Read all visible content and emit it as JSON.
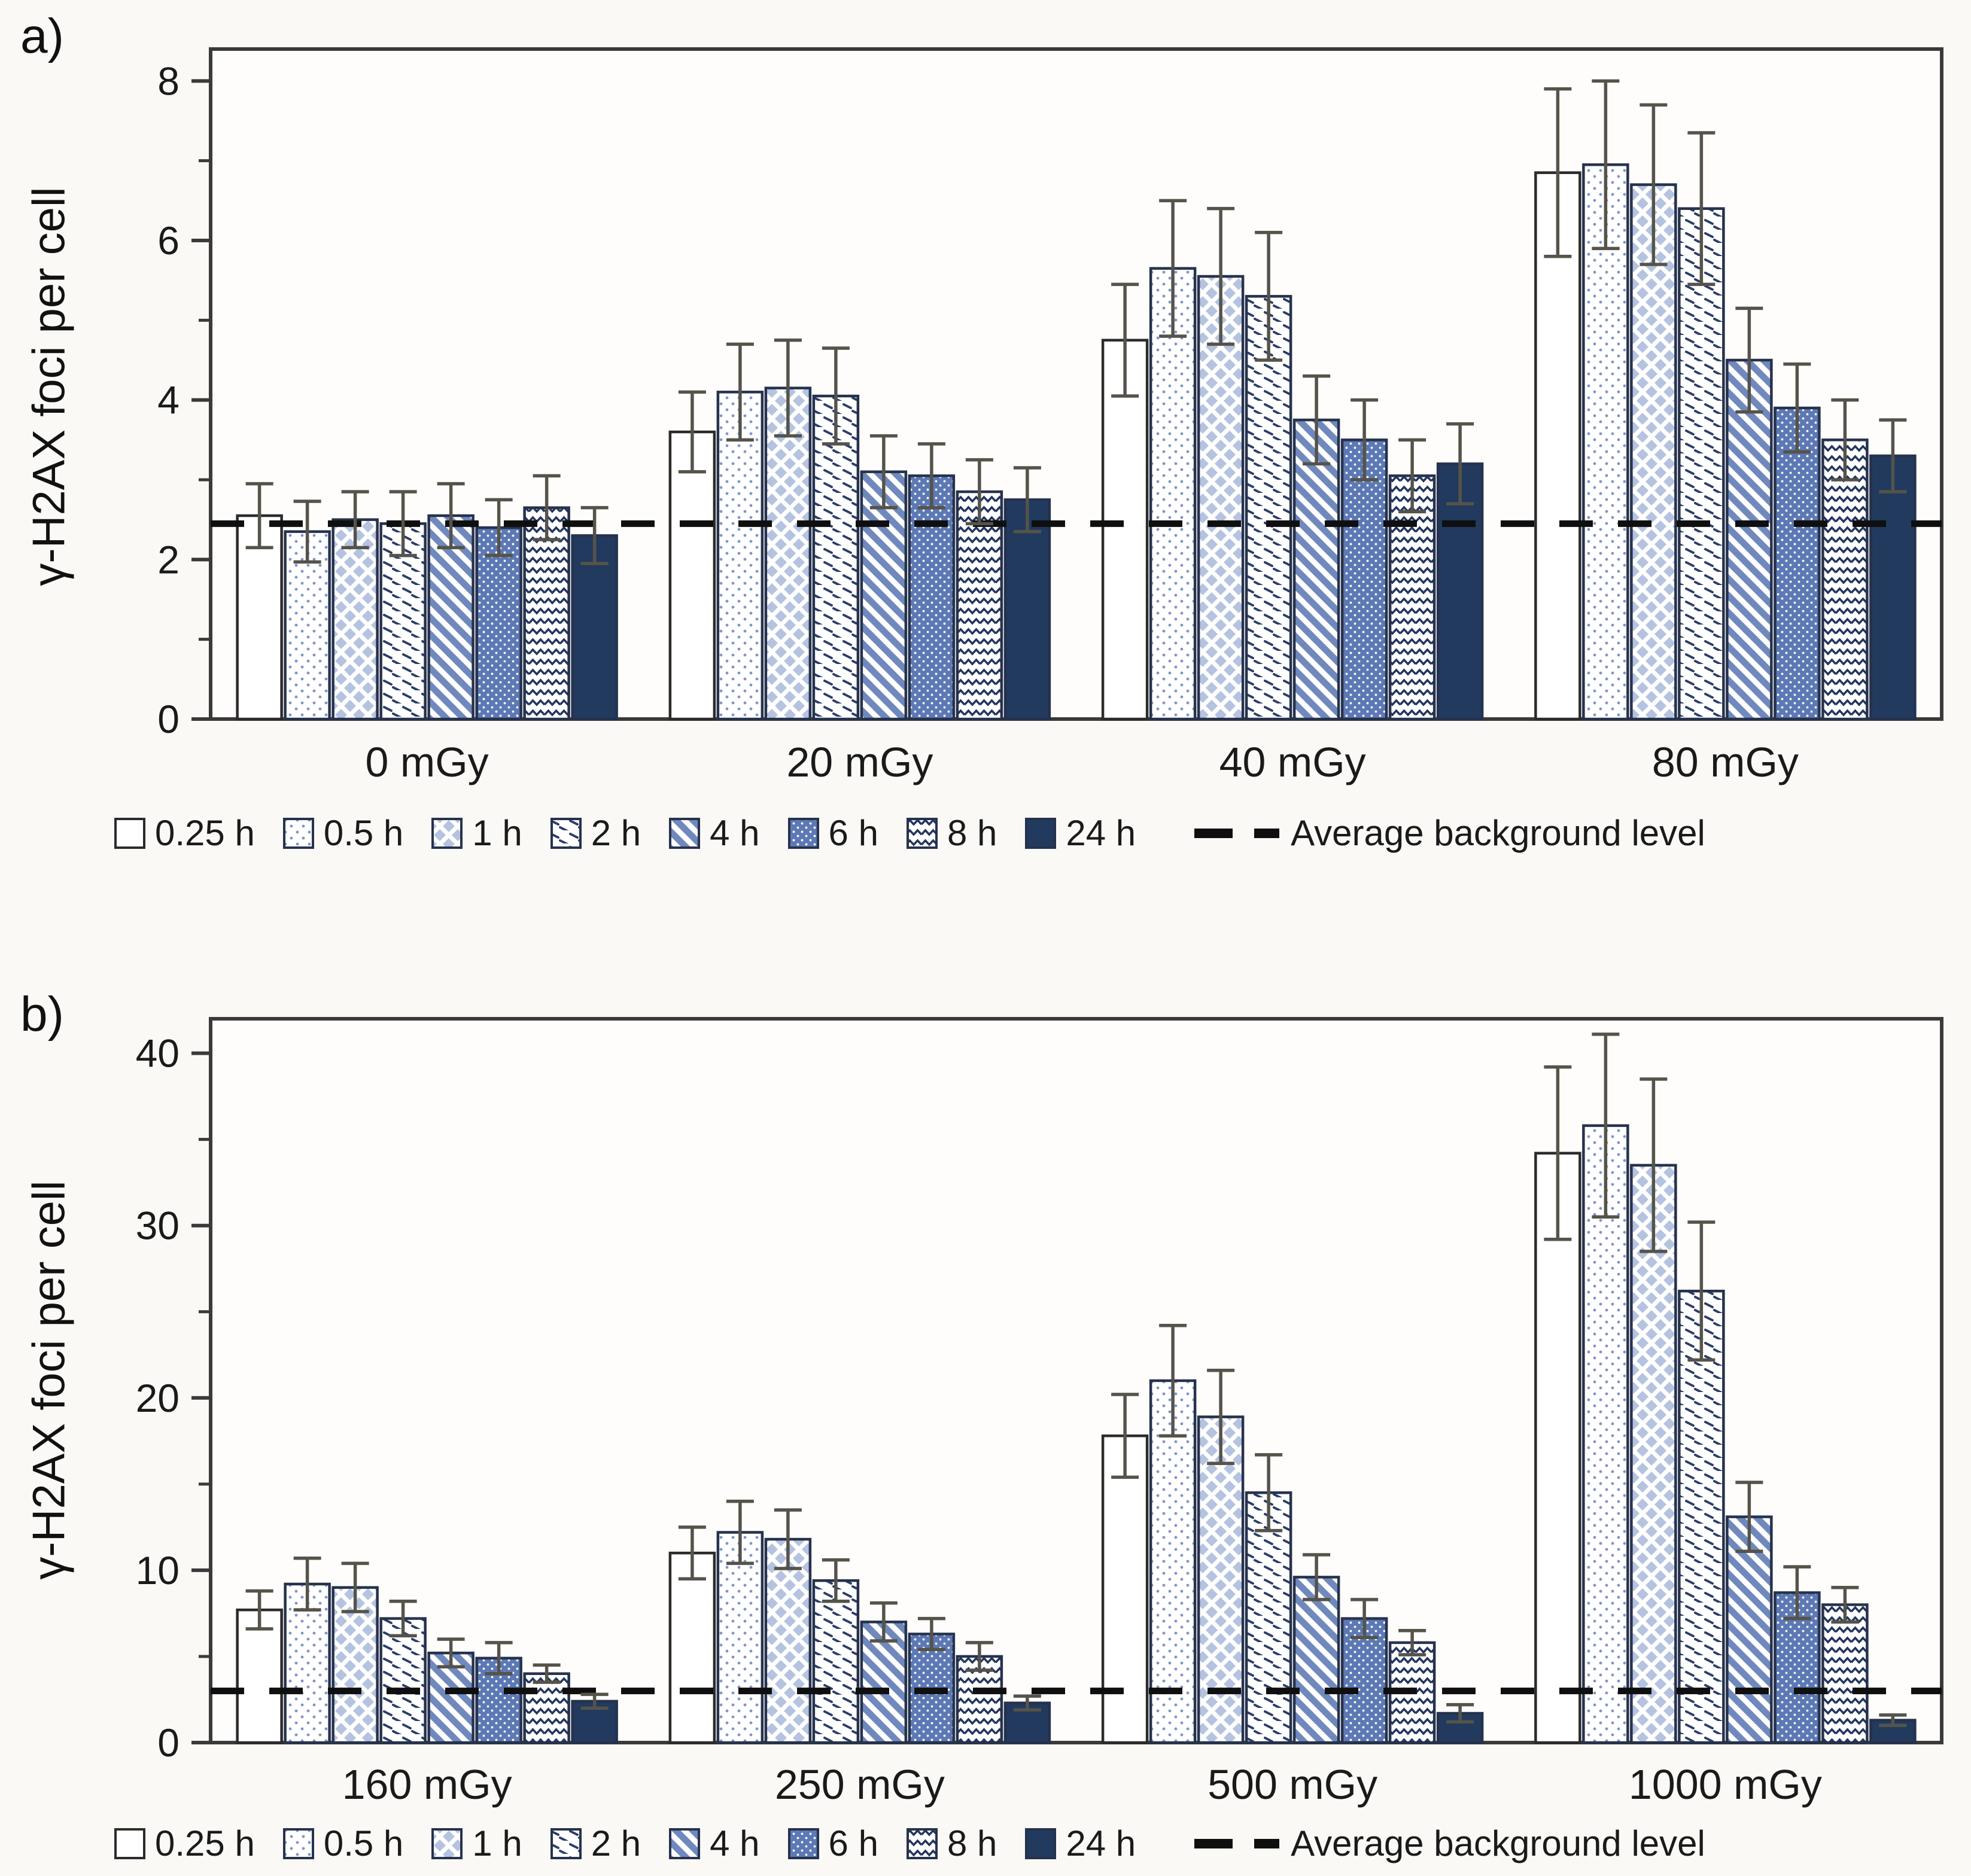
{
  "figure_title": "gamma-H2AX foci time course bar charts",
  "style": {
    "colors": {
      "background": "#faf9f6",
      "plot_fill": "#fefdfb",
      "axis": "#3a3a3a",
      "text": "#1a1a1a",
      "bar_outline": "#26324d",
      "white_bar_outline": "#2b2b2b",
      "light_blue": "#b5c3e1",
      "dot_blue": "#7e95c8",
      "stripe_blue": "#7089bd",
      "mid_blue": "#5d79b5",
      "solid_navy": "#213a5e",
      "pattern_navy": "#2c3e66",
      "error_bar": "#55534a",
      "dashed_line": "#0f0f0f"
    },
    "patterns": {
      "0.25 h": "plain-white",
      "0.5 h": "dotted",
      "1 h": "basket-weave",
      "2 h": "diagonal-dashes",
      "4 h": "diagonal-stripes",
      "6 h": "dotted-dark-blue",
      "8 h": "zigzag",
      "24 h": "solid-navy"
    }
  },
  "legend": {
    "baseline_label": "Average background level"
  },
  "chart_data": [
    {
      "type": "bar",
      "panel_label": "a)",
      "title": "",
      "xlabel": "",
      "ylabel": "γ-H2AX foci per cell",
      "ylim": [
        0,
        8.4
      ],
      "yticks_major": [
        0,
        2,
        4,
        6,
        8
      ],
      "yticks_minor": [
        1,
        3,
        5,
        7
      ],
      "grid": false,
      "legend_position": "bottom",
      "categories": [
        "0 mGy",
        "20 mGy",
        "40 mGy",
        "80 mGy"
      ],
      "series": [
        {
          "name": "0.25 h",
          "values": [
            2.55,
            3.6,
            4.75,
            6.85
          ],
          "errors": [
            0.4,
            0.5,
            0.7,
            1.05
          ]
        },
        {
          "name": "0.5 h",
          "values": [
            2.35,
            4.1,
            5.65,
            6.95
          ],
          "errors": [
            0.38,
            0.6,
            0.85,
            1.05
          ]
        },
        {
          "name": "1 h",
          "values": [
            2.5,
            4.15,
            5.55,
            6.7
          ],
          "errors": [
            0.35,
            0.6,
            0.85,
            1.0
          ]
        },
        {
          "name": "2 h",
          "values": [
            2.45,
            4.05,
            5.3,
            6.4
          ],
          "errors": [
            0.4,
            0.6,
            0.8,
            0.95
          ]
        },
        {
          "name": "4 h",
          "values": [
            2.55,
            3.1,
            3.75,
            4.5
          ],
          "errors": [
            0.4,
            0.45,
            0.55,
            0.65
          ]
        },
        {
          "name": "6 h",
          "values": [
            2.4,
            3.05,
            3.5,
            3.9
          ],
          "errors": [
            0.35,
            0.4,
            0.5,
            0.55
          ]
        },
        {
          "name": "8 h",
          "values": [
            2.65,
            2.85,
            3.05,
            3.5
          ],
          "errors": [
            0.4,
            0.4,
            0.45,
            0.5
          ]
        },
        {
          "name": "24 h",
          "values": [
            2.3,
            2.75,
            3.2,
            3.3
          ],
          "errors": [
            0.35,
            0.4,
            0.5,
            0.45
          ]
        }
      ],
      "baseline": {
        "label": "Average background level",
        "value": 2.45
      }
    },
    {
      "type": "bar",
      "panel_label": "b)",
      "title": "",
      "xlabel": "",
      "ylabel": "γ-H2AX foci per cell",
      "ylim": [
        0,
        42
      ],
      "yticks_major": [
        0,
        10,
        20,
        30,
        40
      ],
      "yticks_minor": [
        5,
        15,
        25,
        35
      ],
      "grid": false,
      "legend_position": "bottom",
      "categories": [
        "160 mGy",
        "250 mGy",
        "500 mGy",
        "1000 mGy"
      ],
      "series": [
        {
          "name": "0.25 h",
          "values": [
            7.7,
            11.0,
            17.8,
            34.2
          ],
          "errors": [
            1.1,
            1.5,
            2.4,
            5.0
          ]
        },
        {
          "name": "0.5 h",
          "values": [
            9.2,
            12.2,
            21.0,
            35.8
          ],
          "errors": [
            1.5,
            1.8,
            3.2,
            5.3
          ]
        },
        {
          "name": "1 h",
          "values": [
            9.0,
            11.8,
            18.9,
            33.5
          ],
          "errors": [
            1.4,
            1.7,
            2.7,
            5.0
          ]
        },
        {
          "name": "2 h",
          "values": [
            7.2,
            9.4,
            14.5,
            26.2
          ],
          "errors": [
            1.0,
            1.2,
            2.2,
            4.0
          ]
        },
        {
          "name": "4 h",
          "values": [
            5.2,
            7.0,
            9.6,
            13.1
          ],
          "errors": [
            0.8,
            1.1,
            1.3,
            2.0
          ]
        },
        {
          "name": "6 h",
          "values": [
            4.9,
            6.3,
            7.2,
            8.7
          ],
          "errors": [
            0.9,
            0.9,
            1.1,
            1.5
          ]
        },
        {
          "name": "8 h",
          "values": [
            4.0,
            5.0,
            5.8,
            8.0
          ],
          "errors": [
            0.5,
            0.8,
            0.7,
            1.0
          ]
        },
        {
          "name": "24 h",
          "values": [
            2.4,
            2.3,
            1.7,
            1.3
          ],
          "errors": [
            0.4,
            0.4,
            0.5,
            0.3
          ]
        }
      ],
      "baseline": {
        "label": "Average background level",
        "value": 3.0
      }
    }
  ]
}
